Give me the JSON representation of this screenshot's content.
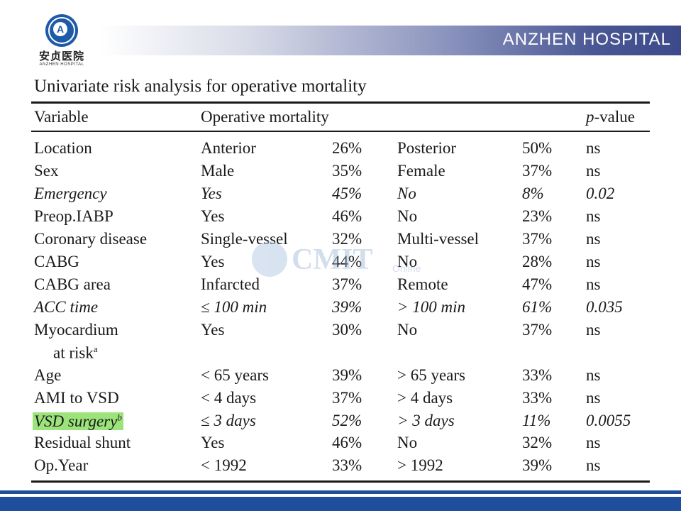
{
  "header": {
    "logo_cn": "安贞医院",
    "logo_en": "ANZHEN HOSPITAL",
    "banner_title": "ANZHEN  HOSPITAL"
  },
  "table": {
    "caption": "Univariate risk analysis for operative mortality",
    "headers": [
      "Variable",
      "Operative mortality",
      "p-value"
    ],
    "rows": [
      {
        "variable": "Location",
        "opt1": "Anterior",
        "pct1": "26%",
        "opt2": "Posterior",
        "pct2": "50%",
        "p": "ns"
      },
      {
        "variable": "Sex",
        "opt1": "Male",
        "pct1": "35%",
        "opt2": "Female",
        "pct2": "37%",
        "p": "ns"
      },
      {
        "variable": "Emergency",
        "opt1": "Yes",
        "pct1": "45%",
        "opt2": "No",
        "pct2": "8%",
        "p": "0.02"
      },
      {
        "variable": "Preop.IABP",
        "opt1": "Yes",
        "pct1": "46%",
        "opt2": "No",
        "pct2": "23%",
        "p": "ns"
      },
      {
        "variable": "Coronary disease",
        "opt1": "Single-vessel",
        "pct1": "32%",
        "opt2": "Multi-vessel",
        "pct2": "37%",
        "p": "ns"
      },
      {
        "variable": "CABG",
        "opt1": "Yes",
        "pct1": "44%",
        "opt2": "No",
        "pct2": "28%",
        "p": "ns"
      },
      {
        "variable": "CABG area",
        "opt1": "Infarcted",
        "pct1": "37%",
        "opt2": "Remote",
        "pct2": "47%",
        "p": "ns"
      },
      {
        "variable": "ACC time",
        "opt1": "≤ 100 min",
        "pct1": "39%",
        "opt2": "> 100 min",
        "pct2": "61%",
        "p": "0.035"
      },
      {
        "variable": "Myocardium",
        "variable_line2": "at risk",
        "variable_sup": "a",
        "opt1": "Yes",
        "pct1": "30%",
        "opt2": "No",
        "pct2": "37%",
        "p": "ns"
      },
      {
        "variable": "Age",
        "opt1": "< 65 years",
        "pct1": "39%",
        "opt2": "> 65 years",
        "pct2": "33%",
        "p": "ns"
      },
      {
        "variable": "AMI to VSD",
        "opt1": "< 4 days",
        "pct1": "37%",
        "opt2": "> 4 days",
        "pct2": "33%",
        "p": "ns"
      },
      {
        "variable": "VSD surgery",
        "variable_sup": "b",
        "opt1": "≤ 3 days",
        "pct1": "52%",
        "opt2": "> 3 days",
        "pct2": "11%",
        "p": "0.0055"
      },
      {
        "variable": "Residual shunt",
        "opt1": "Yes",
        "pct1": "46%",
        "opt2": "No",
        "pct2": "32%",
        "p": "ns"
      },
      {
        "variable": "Op.Year",
        "opt1": "< 1992",
        "pct1": "33%",
        "opt2": "> 1992",
        "pct2": "39%",
        "p": "ns"
      }
    ]
  },
  "watermark": {
    "text": "CMIT",
    "sub": "Online"
  },
  "colors": {
    "brand_blue": "#1f4f9c",
    "highlight": "#9be37a"
  }
}
